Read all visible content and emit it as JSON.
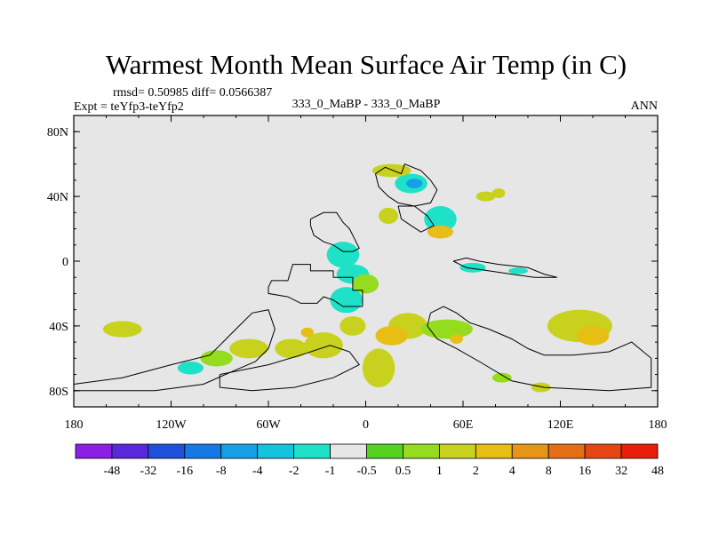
{
  "chart_data": {
    "type": "heatmap",
    "title": "Warmest Month Mean Surface Air Temp (in C)",
    "stats_line": "rmsd= 0.50985 diff= 0.0566387",
    "left_label": "Expt = teYfp3-teYfp2",
    "center_label": "333_0_MaBP - 333_0_MaBP",
    "right_label": "ANN",
    "x_range": [
      -180,
      180
    ],
    "y_range": [
      -90,
      90
    ],
    "x_ticks": [
      {
        "value": -180,
        "label": "180"
      },
      {
        "value": -120,
        "label": "120W"
      },
      {
        "value": -60,
        "label": "60W"
      },
      {
        "value": 0,
        "label": "0"
      },
      {
        "value": 60,
        "label": "60E"
      },
      {
        "value": 120,
        "label": "120E"
      },
      {
        "value": 180,
        "label": "180"
      }
    ],
    "y_ticks": [
      {
        "value": 80,
        "label": "80N"
      },
      {
        "value": 40,
        "label": "40N"
      },
      {
        "value": 0,
        "label": "0"
      },
      {
        "value": -40,
        "label": "40S"
      },
      {
        "value": -80,
        "label": "80S"
      }
    ],
    "background_color": "#e6e6e6",
    "colorbar": {
      "colors": [
        "#8c1ee6",
        "#5a28dc",
        "#1e50dc",
        "#1478e6",
        "#14a0e6",
        "#14c3dc",
        "#1ee1c8",
        "#e6e6e6",
        "#55d21e",
        "#96dc1e",
        "#c8d21e",
        "#e6be14",
        "#e69614",
        "#e66e14",
        "#e64614",
        "#e61e0a"
      ],
      "labels": [
        "-48",
        "-32",
        "-16",
        "-8",
        "-4",
        "-2",
        "-1",
        "-0.5",
        "0.5",
        "1",
        "2",
        "4",
        "8",
        "16",
        "32",
        "48"
      ]
    },
    "continent_outlines": [
      [
        [
          -2,
          -28
        ],
        [
          -2,
          -18
        ],
        [
          -8,
          -18
        ],
        [
          -8,
          -10
        ],
        [
          -20,
          -10
        ],
        [
          -20,
          -6
        ],
        [
          -34,
          -6
        ],
        [
          -34,
          -2
        ],
        [
          -45,
          -2
        ],
        [
          -48,
          -12
        ],
        [
          -58,
          -12
        ],
        [
          -60,
          -16
        ],
        [
          -60,
          -20
        ],
        [
          -48,
          -22
        ],
        [
          -40,
          -26
        ],
        [
          -30,
          -26
        ],
        [
          -26,
          -22
        ],
        [
          -20,
          -24
        ],
        [
          -14,
          -28
        ],
        [
          -2,
          -28
        ]
      ],
      [
        [
          -34,
          26
        ],
        [
          -26,
          30
        ],
        [
          -18,
          30
        ],
        [
          -14,
          24
        ],
        [
          -10,
          20
        ],
        [
          -8,
          16
        ],
        [
          -4,
          8
        ],
        [
          -8,
          6
        ],
        [
          -14,
          6
        ],
        [
          -20,
          10
        ],
        [
          -26,
          12
        ],
        [
          -32,
          16
        ],
        [
          -34,
          22
        ],
        [
          -34,
          26
        ]
      ],
      [
        [
          6,
          54
        ],
        [
          12,
          58
        ],
        [
          22,
          54
        ],
        [
          24,
          60
        ],
        [
          34,
          56
        ],
        [
          40,
          50
        ],
        [
          44,
          44
        ],
        [
          40,
          36
        ],
        [
          30,
          34
        ],
        [
          20,
          36
        ],
        [
          14,
          40
        ],
        [
          8,
          46
        ],
        [
          6,
          54
        ]
      ],
      [
        [
          20,
          34
        ],
        [
          30,
          34
        ],
        [
          38,
          28
        ],
        [
          42,
          22
        ],
        [
          34,
          18
        ],
        [
          28,
          22
        ],
        [
          22,
          26
        ],
        [
          20,
          34
        ]
      ],
      [
        [
          54,
          0
        ],
        [
          62,
          2
        ],
        [
          70,
          0
        ],
        [
          82,
          -2
        ],
        [
          100,
          -4
        ],
        [
          110,
          -8
        ],
        [
          118,
          -10
        ],
        [
          104,
          -10
        ],
        [
          90,
          -8
        ],
        [
          76,
          -6
        ],
        [
          62,
          -4
        ],
        [
          54,
          0
        ]
      ],
      [
        [
          40,
          -32
        ],
        [
          48,
          -28
        ],
        [
          56,
          -32
        ],
        [
          64,
          -38
        ],
        [
          76,
          -42
        ],
        [
          90,
          -48
        ],
        [
          100,
          -54
        ],
        [
          110,
          -58
        ],
        [
          128,
          -58
        ],
        [
          150,
          -56
        ],
        [
          164,
          -50
        ],
        [
          176,
          -60
        ],
        [
          176,
          -78
        ],
        [
          150,
          -80
        ],
        [
          110,
          -78
        ],
        [
          90,
          -74
        ],
        [
          70,
          -62
        ],
        [
          56,
          -54
        ],
        [
          44,
          -48
        ],
        [
          38,
          -40
        ],
        [
          40,
          -32
        ]
      ],
      [
        [
          -180,
          -76
        ],
        [
          -150,
          -72
        ],
        [
          -120,
          -64
        ],
        [
          -96,
          -58
        ],
        [
          -78,
          -40
        ],
        [
          -70,
          -32
        ],
        [
          -60,
          -30
        ],
        [
          -56,
          -42
        ],
        [
          -60,
          -54
        ],
        [
          -68,
          -62
        ],
        [
          -82,
          -68
        ],
        [
          -100,
          -76
        ],
        [
          -130,
          -80
        ],
        [
          -180,
          -80
        ]
      ],
      [
        [
          -90,
          -70
        ],
        [
          -60,
          -64
        ],
        [
          -40,
          -58
        ],
        [
          -22,
          -52
        ],
        [
          -10,
          -56
        ],
        [
          -4,
          -64
        ],
        [
          -20,
          -72
        ],
        [
          -44,
          -78
        ],
        [
          -70,
          -80
        ],
        [
          -90,
          -78
        ],
        [
          -90,
          -70
        ]
      ]
    ],
    "anomaly_patches": [
      {
        "lon": -20,
        "lat": 16,
        "rx": 12,
        "ry": 10,
        "level": -0.8
      },
      {
        "lon": -14,
        "lat": 4,
        "rx": 10,
        "ry": 8,
        "level": -1.2
      },
      {
        "lon": -8,
        "lat": -8,
        "rx": 10,
        "ry": 6,
        "level": -1.5
      },
      {
        "lon": -12,
        "lat": -24,
        "rx": 10,
        "ry": 8,
        "level": -1.2
      },
      {
        "lon": 0,
        "lat": -14,
        "rx": 8,
        "ry": 6,
        "level": 0.8
      },
      {
        "lon": 14,
        "lat": 28,
        "rx": 6,
        "ry": 5,
        "level": 1.2
      },
      {
        "lon": 28,
        "lat": 48,
        "rx": 10,
        "ry": 6,
        "level": -1.2
      },
      {
        "lon": 30,
        "lat": 48,
        "rx": 5,
        "ry": 3,
        "level": -6
      },
      {
        "lon": 16,
        "lat": 56,
        "rx": 12,
        "ry": 4,
        "level": 1.5
      },
      {
        "lon": 46,
        "lat": 26,
        "rx": 10,
        "ry": 8,
        "level": -1.0
      },
      {
        "lon": 46,
        "lat": 18,
        "rx": 8,
        "ry": 4,
        "level": 2.5
      },
      {
        "lon": 74,
        "lat": 40,
        "rx": 6,
        "ry": 3,
        "level": 1.2
      },
      {
        "lon": 82,
        "lat": 42,
        "rx": 4,
        "ry": 3,
        "level": 1.8
      },
      {
        "lon": 66,
        "lat": -4,
        "rx": 8,
        "ry": 3,
        "level": -1.0
      },
      {
        "lon": 80,
        "lat": -8,
        "rx": 6,
        "ry": 2,
        "level": -0.8
      },
      {
        "lon": 94,
        "lat": -6,
        "rx": 6,
        "ry": 2,
        "level": -1.0
      },
      {
        "lon": 26,
        "lat": -40,
        "rx": 12,
        "ry": 8,
        "level": 1.5
      },
      {
        "lon": 16,
        "lat": -46,
        "rx": 10,
        "ry": 6,
        "level": 3
      },
      {
        "lon": 8,
        "lat": -66,
        "rx": 10,
        "ry": 12,
        "level": 1.2
      },
      {
        "lon": 50,
        "lat": -42,
        "rx": 16,
        "ry": 6,
        "level": 1.0
      },
      {
        "lon": 132,
        "lat": -40,
        "rx": 20,
        "ry": 10,
        "level": 1.5
      },
      {
        "lon": 140,
        "lat": -46,
        "rx": 10,
        "ry": 6,
        "level": 3
      },
      {
        "lon": -8,
        "lat": -40,
        "rx": 8,
        "ry": 6,
        "level": 2
      },
      {
        "lon": -26,
        "lat": -52,
        "rx": 12,
        "ry": 8,
        "level": 1.2
      },
      {
        "lon": -46,
        "lat": -54,
        "rx": 10,
        "ry": 6,
        "level": 1.8
      },
      {
        "lon": -72,
        "lat": -54,
        "rx": 12,
        "ry": 6,
        "level": 1.2
      },
      {
        "lon": -92,
        "lat": -60,
        "rx": 10,
        "ry": 5,
        "level": 1.0
      },
      {
        "lon": -150,
        "lat": -42,
        "rx": 12,
        "ry": 5,
        "level": 1.2
      },
      {
        "lon": -108,
        "lat": -66,
        "rx": 8,
        "ry": 4,
        "level": -1.2
      },
      {
        "lon": 84,
        "lat": -72,
        "rx": 6,
        "ry": 3,
        "level": 1.0
      },
      {
        "lon": 108,
        "lat": -78,
        "rx": 6,
        "ry": 3,
        "level": 1.2
      },
      {
        "lon": -36,
        "lat": -44,
        "rx": 4,
        "ry": 3,
        "level": 2.5
      },
      {
        "lon": 56,
        "lat": -48,
        "rx": 4,
        "ry": 3,
        "level": 3
      }
    ]
  }
}
